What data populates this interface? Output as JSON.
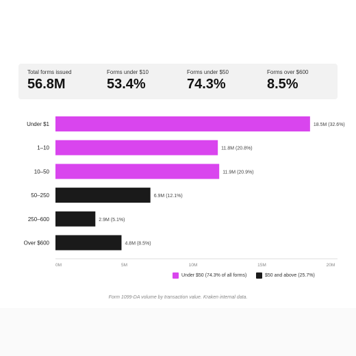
{
  "summary": [
    {
      "label": "Total forms issued",
      "value": "56.8M"
    },
    {
      "label": "Forms under $10",
      "value": "53.4%"
    },
    {
      "label": "Forms under $50",
      "value": "74.3%"
    },
    {
      "label": "Forms over $600",
      "value": "8.5%"
    }
  ],
  "chart_data": {
    "type": "bar",
    "orientation": "horizontal",
    "title": "",
    "xlabel": "",
    "ylabel": "",
    "xlim": [
      0,
      20
    ],
    "x_ticks": [
      "0M",
      "5M",
      "10M",
      "15M",
      "20M"
    ],
    "categories": [
      "Under $1",
      "1–10",
      "10–50",
      "50–250",
      "250–600",
      "Over $600"
    ],
    "values": [
      18.5,
      11.8,
      11.9,
      6.9,
      2.9,
      4.8
    ],
    "data_labels": [
      "18.5M  (32.6%)",
      "11.8M  (20.8%)",
      "11.9M  (20.9%)",
      "6.9M  (12.1%)",
      "2.9M  (5.1%)",
      "4.8M  (8.5%)"
    ],
    "groups": [
      "under",
      "under",
      "under",
      "over",
      "over",
      "over"
    ],
    "colors": {
      "under": "#d945ee",
      "over": "#1a1a1a"
    },
    "grid": false,
    "legend_position": "bottom-right",
    "legend": [
      {
        "key": "under",
        "label": "Under $50 (74.3% of all forms)"
      },
      {
        "key": "over",
        "label": "$50 and above (25.7%)"
      }
    ]
  },
  "caption": "Form 1099-DA volume by transaction value. Kraken internal data."
}
